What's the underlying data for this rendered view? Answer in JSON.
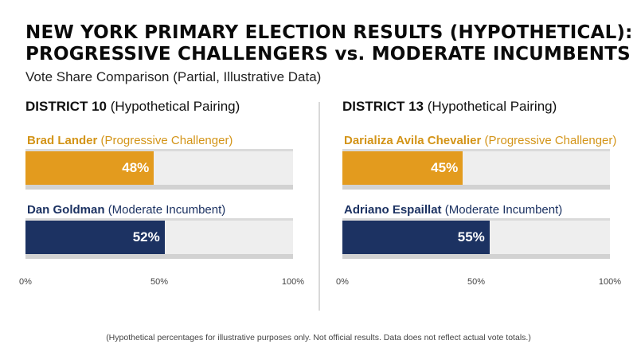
{
  "title_line1": "NEW YORK PRIMARY  ELECTION RESULTS (HYPOTHETICAL):",
  "title_line2": "PROGRESSIVE CHALLENGERS vs. MODERATE INCUMBENTS",
  "subtitle": "Vote Share Comparison (Partial, Illustrative Data)",
  "footnote": "(Hypothetical percentages for illustrative purposes only. Not official results. Data does not reflect actual vote totals.)",
  "colors": {
    "progressive": "#e39b1e",
    "progressive_text": "#d39418",
    "moderate": "#1c3262",
    "moderate_text": "#1c3262"
  },
  "chart_data": [
    {
      "type": "bar",
      "orientation": "horizontal",
      "district": "DISTRICT 10",
      "pairing": "(Hypothetical Pairing)",
      "categories": [
        "Brad Lander",
        "Dan Goldman"
      ],
      "roles": [
        "(Progressive Challenger)",
        "(Moderate Incumbent)"
      ],
      "values": [
        48,
        52
      ],
      "value_labels": [
        "48%",
        "52%"
      ],
      "xlim": [
        0,
        100
      ],
      "ticks": [
        "0%",
        "50%",
        "100%"
      ]
    },
    {
      "type": "bar",
      "orientation": "horizontal",
      "district": "DISTRICT 13",
      "pairing": "(Hypothetical Pairing)",
      "categories": [
        "Darializa Avila Chevalier",
        "Adriano Espaillat"
      ],
      "roles": [
        "(Progressive Challenger)",
        "(Moderate Incumbent)"
      ],
      "values": [
        45,
        55
      ],
      "value_labels": [
        "45%",
        "55%"
      ],
      "xlim": [
        0,
        100
      ],
      "ticks": [
        "0%",
        "50%",
        "100%"
      ]
    }
  ]
}
